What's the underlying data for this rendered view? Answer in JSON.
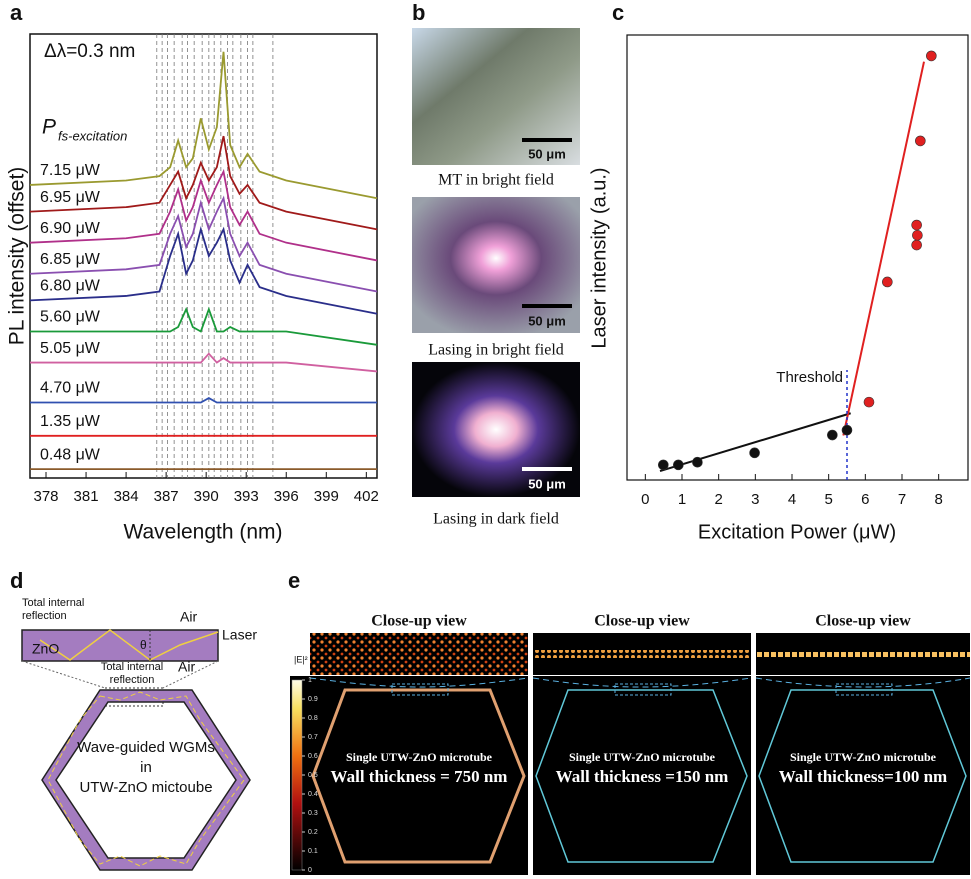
{
  "panel_labels": [
    "a",
    "b",
    "c",
    "d",
    "e"
  ],
  "chart_data": [
    {
      "type": "line",
      "annotation": "Δλ=0.3 nm",
      "legend_title": "P",
      "legend_title_sub": "fs-excitation",
      "x_label": "Wavelength (nm)",
      "y_label": "PL intensity (offset)",
      "xlim": [
        376.8,
        402.8
      ],
      "xticks": [
        378,
        381,
        384,
        387,
        390,
        393,
        396,
        399,
        402
      ],
      "ylim": [
        0,
        100
      ],
      "mode_lines": [
        386.3,
        386.7,
        387.1,
        387.6,
        388.2,
        388.6,
        389.1,
        389.7,
        390.2,
        390.6,
        391.1,
        391.6,
        392.0,
        392.6,
        393.1,
        393.5,
        395.0
      ],
      "x": [
        376.8,
        384,
        386.5,
        387.3,
        387.9,
        388.5,
        389,
        389.6,
        390.2,
        390.8,
        391.3,
        391.8,
        392.5,
        393.1,
        394,
        396,
        402.8
      ],
      "series": [
        {
          "name": "7.15 μW",
          "color": "#9a9a30",
          "values": [
            66,
            67,
            68,
            70,
            76,
            70,
            72,
            81,
            74,
            79,
            96,
            75,
            70,
            73,
            69,
            67,
            63
          ]
        },
        {
          "name": "6.95 μW",
          "color": "#a01a1a",
          "values": [
            60,
            61,
            62,
            66,
            69,
            63,
            66,
            71,
            67,
            70,
            77,
            68,
            64,
            66,
            62,
            60,
            56
          ]
        },
        {
          "name": "6.90 μW",
          "color": "#b0308a",
          "values": [
            53,
            54,
            55,
            60,
            65,
            58,
            61,
            67,
            62,
            66,
            69,
            61,
            57,
            60,
            55,
            53,
            49
          ]
        },
        {
          "name": "6.85 μW",
          "color": "#8a4fb0",
          "values": [
            46,
            47,
            48,
            55,
            59,
            52,
            55,
            62,
            56,
            60,
            63,
            55,
            50,
            53,
            48,
            46,
            42
          ]
        },
        {
          "name": "6.80 μW",
          "color": "#2a2e8a",
          "values": [
            40,
            41,
            42,
            50,
            55,
            46,
            49,
            56,
            50,
            53,
            56,
            49,
            44,
            48,
            43,
            41,
            37
          ]
        },
        {
          "name": "5.60 μW",
          "color": "#1a9a3a",
          "values": [
            33,
            33,
            33,
            33,
            34,
            38,
            34,
            33,
            38,
            33,
            33,
            34,
            33,
            33,
            33,
            33,
            30
          ]
        },
        {
          "name": "5.05 μW",
          "color": "#d060a0",
          "values": [
            26,
            26,
            26,
            26,
            26,
            26,
            26,
            26,
            28,
            26,
            27,
            26,
            26,
            26,
            26,
            26,
            24
          ]
        },
        {
          "name": "4.70 μW",
          "color": "#3050b0",
          "values": [
            17,
            17,
            17,
            17,
            17,
            17,
            17,
            17,
            18,
            17,
            17,
            17,
            17,
            17,
            17,
            17,
            17
          ]
        },
        {
          "name": "1.35 μW",
          "color": "#e02020",
          "values": [
            9.5,
            9.5,
            9.5,
            9.5,
            9.5,
            9.5,
            9.5,
            9.5,
            9.5,
            9.5,
            9.5,
            9.5,
            9.5,
            9.5,
            9.5,
            9.5,
            9.5
          ]
        },
        {
          "name": "0.48 μW",
          "color": "#8a5a2a",
          "values": [
            2,
            2,
            2,
            2,
            2,
            2,
            2,
            2,
            2,
            2,
            2,
            2,
            2,
            2,
            2,
            2,
            2
          ]
        }
      ]
    },
    {
      "type": "scatter",
      "x_label": "Excitation Power (μW)",
      "y_label": "Laser intensity (a.u.)",
      "xlim": [
        -0.5,
        8.8
      ],
      "xticks": [
        0,
        1,
        2,
        3,
        4,
        5,
        6,
        7,
        8
      ],
      "ylim": [
        0,
        100
      ],
      "annotation": "Threshold",
      "threshold": 5.5,
      "series": [
        {
          "color": "#111111",
          "x": [
            0.49,
            0.9,
            1.42,
            2.98,
            5.1,
            5.5
          ],
          "values": [
            3.4,
            3.4,
            4,
            6.1,
            10.1,
            11.2
          ]
        },
        {
          "color": "#e02020",
          "x": [
            6.1,
            6.6,
            7.4,
            7.42,
            7.4,
            7.5,
            7.8
          ],
          "values": [
            17.5,
            44.5,
            52.8,
            55,
            57.3,
            76.2,
            95.3
          ]
        }
      ],
      "fits": [
        {
          "color": "#111111",
          "x": [
            0.4,
            5.6
          ],
          "values": [
            2,
            15
          ]
        },
        {
          "color": "#e02020",
          "x": [
            5.4,
            7.6
          ],
          "values": [
            10,
            94
          ]
        }
      ]
    }
  ],
  "panel_b": {
    "captions": [
      "MT in bright field",
      "Lasing in bright field",
      "Lasing in dark field"
    ],
    "scale_bar": "50 μm"
  },
  "panel_d": {
    "tir_top": [
      "Total internal",
      "reflection"
    ],
    "air_top": "Air",
    "laser": "Laser",
    "zno": "ZnO",
    "theta": "θ",
    "air_bottom": "Air",
    "tir_bottom": [
      "Total internal",
      "reflection"
    ],
    "hex_text": [
      "Wave-guided WGMs",
      "in",
      "UTW-ZnO mictoube"
    ]
  },
  "panel_e": {
    "titles": [
      "Close-up view",
      "Close-up view",
      "Close-up view"
    ],
    "colorbar_label": "|E|²",
    "colorbar_ticks": [
      0,
      0.1,
      0.2,
      0.3,
      0.4,
      0.5,
      0.6,
      0.7,
      0.8,
      0.9,
      1
    ],
    "tube": [
      "Single UTW-ZnO microtube",
      "Single UTW-ZnO microtube",
      "Single UTW-ZnO microtube"
    ],
    "thickness": [
      "Wall thickness = 750 nm",
      "Wall thickness =150 nm",
      "Wall thickness=100 nm"
    ]
  }
}
